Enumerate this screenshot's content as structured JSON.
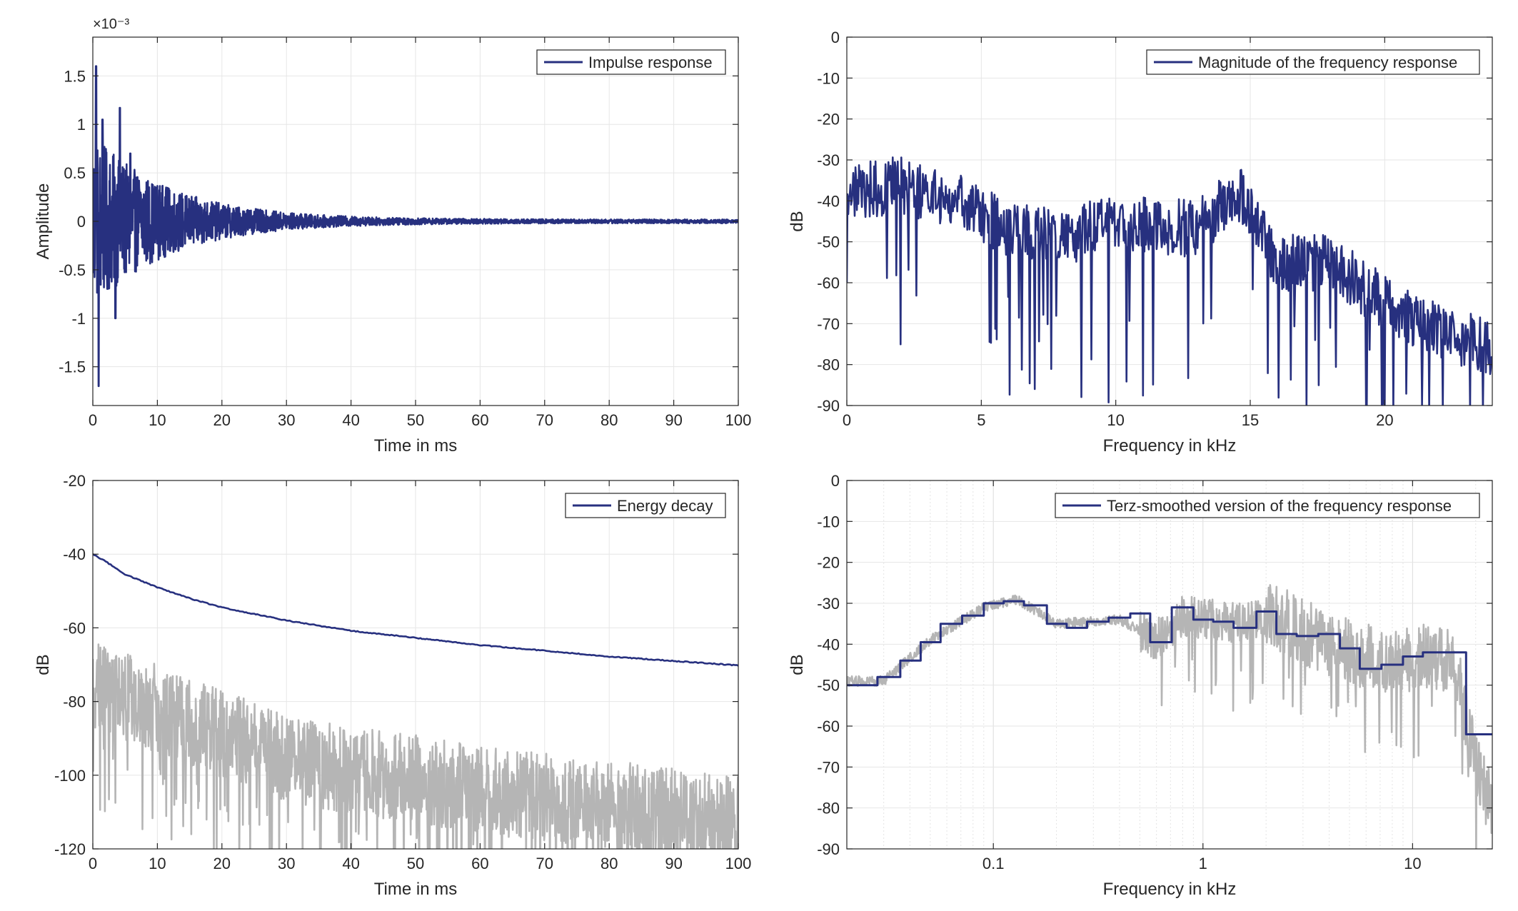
{
  "colors": {
    "series": "#27307F",
    "gray": "#B5B5B5",
    "grid": "#E6E6E6",
    "axis": "#262626"
  },
  "chart_data": [
    {
      "type": "line",
      "xlabel": "Time in ms",
      "ylabel": "Amplitude",
      "exponent_label": "×10⁻³",
      "xlim": [
        0,
        100
      ],
      "ylim": [
        -1.9,
        1.9
      ],
      "xticks": [
        0,
        10,
        20,
        30,
        40,
        50,
        60,
        70,
        80,
        90,
        100
      ],
      "xtick_labels": [
        "0",
        "10",
        "20",
        "30",
        "40",
        "50",
        "60",
        "70",
        "80",
        "90",
        "100"
      ],
      "yticks": [
        1.5,
        1,
        0.5,
        0,
        -0.5,
        -1,
        -1.5
      ],
      "ytick_labels": [
        "1.5",
        "1",
        "0.5",
        "0",
        "-0.5",
        "-1",
        "-1.5"
      ],
      "grid": true,
      "legend_position": "top-right",
      "series": [
        {
          "name": "Impulse response",
          "color": "#27307F",
          "envelope": {
            "peak": 1.6,
            "decay_ms": 12,
            "floor": 0.02
          },
          "peaks": [
            [
              0.5,
              1.6
            ],
            [
              0.9,
              -1.7
            ],
            [
              1.5,
              1.05
            ],
            [
              3.5,
              -1.0
            ],
            [
              4.2,
              1.17
            ],
            [
              5.8,
              0.7
            ]
          ]
        }
      ]
    },
    {
      "type": "line",
      "xlabel": "Frequency in kHz",
      "ylabel": "dB",
      "xlim": [
        0,
        24
      ],
      "ylim": [
        -90,
        0
      ],
      "xticks": [
        0,
        5,
        10,
        15,
        20
      ],
      "xtick_labels": [
        "0",
        "5",
        "10",
        "15",
        "20"
      ],
      "yticks": [
        0,
        -10,
        -20,
        -30,
        -40,
        -50,
        -60,
        -70,
        -80,
        -90
      ],
      "ytick_labels": [
        "0",
        "-10",
        "-20",
        "-30",
        "-40",
        "-50",
        "-60",
        "-70",
        "-80",
        "-90"
      ],
      "grid": true,
      "legend_position": "top-right",
      "series": [
        {
          "name": "Magnitude of the frequency response",
          "color": "#27307F",
          "trend": [
            [
              0,
              -38
            ],
            [
              2,
              -36
            ],
            [
              4,
              -40
            ],
            [
              6,
              -47
            ],
            [
              8,
              -49
            ],
            [
              10,
              -45
            ],
            [
              13,
              -47
            ],
            [
              14.5,
              -38
            ],
            [
              15,
              -42
            ],
            [
              16,
              -55
            ],
            [
              18,
              -55
            ],
            [
              20,
              -65
            ],
            [
              22,
              -72
            ],
            [
              24,
              -76
            ]
          ]
        }
      ]
    },
    {
      "type": "line",
      "xlabel": "Time in ms",
      "ylabel": "dB",
      "xlim": [
        0,
        100
      ],
      "ylim": [
        -120,
        -20
      ],
      "xticks": [
        0,
        10,
        20,
        30,
        40,
        50,
        60,
        70,
        80,
        90,
        100
      ],
      "xtick_labels": [
        "0",
        "10",
        "20",
        "30",
        "40",
        "50",
        "60",
        "70",
        "80",
        "90",
        "100"
      ],
      "yticks": [
        -20,
        -40,
        -60,
        -80,
        -100,
        -120
      ],
      "ytick_labels": [
        "-20",
        "-40",
        "-60",
        "-80",
        "-100",
        "-120"
      ],
      "grid": true,
      "legend_position": "top-right",
      "series": [
        {
          "name": "Energy decay",
          "color": "#27307F",
          "points": [
            [
              0,
              -40
            ],
            [
              2,
              -42
            ],
            [
              5,
              -45.5
            ],
            [
              10,
              -49
            ],
            [
              15,
              -52
            ],
            [
              20,
              -54.5
            ],
            [
              30,
              -58
            ],
            [
              40,
              -60.8
            ],
            [
              50,
              -62.7
            ],
            [
              60,
              -64.7
            ],
            [
              70,
              -66.2
            ],
            [
              80,
              -67.8
            ],
            [
              90,
              -69
            ],
            [
              100,
              -70.2
            ]
          ]
        },
        {
          "color": "#B5B5B5",
          "trend": [
            [
              0,
              -75
            ],
            [
              10,
              -82
            ],
            [
              20,
              -89
            ],
            [
              30,
              -95
            ],
            [
              40,
              -99
            ],
            [
              50,
              -101
            ],
            [
              60,
              -104
            ],
            [
              70,
              -106
            ],
            [
              80,
              -108
            ],
            [
              90,
              -110
            ],
            [
              100,
              -112
            ]
          ]
        }
      ]
    },
    {
      "type": "line",
      "xlabel": "Frequency in kHz",
      "ylabel": "dB",
      "xscale": "log",
      "xlim": [
        0.02,
        24
      ],
      "ylim": [
        -90,
        0
      ],
      "xticks": [
        0.1,
        1,
        10
      ],
      "xtick_labels": [
        "0.1",
        "1",
        "10"
      ],
      "yticks": [
        0,
        -10,
        -20,
        -30,
        -40,
        -50,
        -60,
        -70,
        -80,
        -90
      ],
      "ytick_labels": [
        "0",
        "-10",
        "-20",
        "-30",
        "-40",
        "-50",
        "-60",
        "-70",
        "-80",
        "-90"
      ],
      "grid": true,
      "legend_position": "top-right",
      "series": [
        {
          "name": "Terz-smoothed version of the frequency response",
          "color": "#27307F",
          "steps": [
            [
              0.02,
              -50
            ],
            [
              0.028,
              -48
            ],
            [
              0.036,
              -44
            ],
            [
              0.045,
              -39.5
            ],
            [
              0.056,
              -35
            ],
            [
              0.071,
              -33
            ],
            [
              0.09,
              -30
            ],
            [
              0.112,
              -29.5
            ],
            [
              0.14,
              -30.5
            ],
            [
              0.18,
              -35
            ],
            [
              0.224,
              -36
            ],
            [
              0.28,
              -34.5
            ],
            [
              0.355,
              -33.5
            ],
            [
              0.45,
              -32.5
            ],
            [
              0.56,
              -39.5
            ],
            [
              0.71,
              -31
            ],
            [
              0.9,
              -34
            ],
            [
              1.12,
              -34.5
            ],
            [
              1.4,
              -36
            ],
            [
              1.8,
              -32
            ],
            [
              2.24,
              -37.5
            ],
            [
              2.8,
              -38
            ],
            [
              3.55,
              -37.5
            ],
            [
              4.5,
              -41
            ],
            [
              5.6,
              -46
            ],
            [
              7.1,
              -45
            ],
            [
              9,
              -43
            ],
            [
              11.2,
              -42
            ],
            [
              18,
              -62
            ],
            [
              24,
              -62
            ]
          ]
        },
        {
          "color": "#B5B5B5",
          "trend": [
            [
              0.02,
              -49
            ],
            [
              0.03,
              -49
            ],
            [
              0.05,
              -39
            ],
            [
              0.09,
              -31
            ],
            [
              0.13,
              -29
            ],
            [
              0.2,
              -35
            ],
            [
              0.4,
              -34
            ],
            [
              0.6,
              -39
            ],
            [
              0.8,
              -33
            ],
            [
              1.5,
              -35
            ],
            [
              2.2,
              -33
            ],
            [
              3,
              -37
            ],
            [
              5,
              -42
            ],
            [
              8,
              -44
            ],
            [
              12,
              -43
            ],
            [
              16,
              -45
            ],
            [
              20,
              -70
            ],
            [
              24,
              -80
            ]
          ]
        }
      ]
    }
  ]
}
